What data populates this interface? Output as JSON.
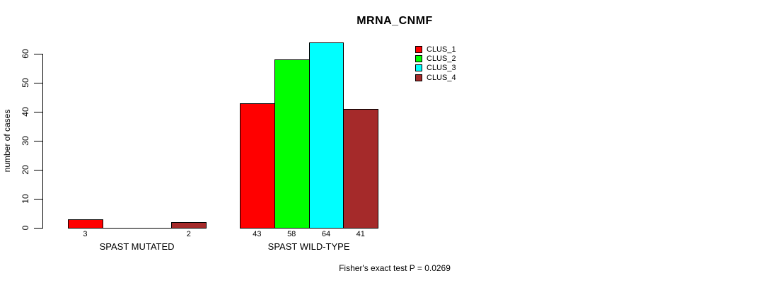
{
  "chart_data": {
    "type": "bar",
    "title": "MRNA_CNMF",
    "xlabel": "",
    "ylabel": "number of cases",
    "categories": [
      "SPAST MUTATED",
      "SPAST WILD-TYPE"
    ],
    "series": [
      {
        "name": "CLUS_1",
        "color": "#ff0000",
        "values": [
          3,
          43
        ]
      },
      {
        "name": "CLUS_2",
        "color": "#00ff00",
        "values": [
          0,
          58
        ]
      },
      {
        "name": "CLUS_3",
        "color": "#00ffff",
        "values": [
          0,
          64
        ]
      },
      {
        "name": "CLUS_4",
        "color": "#a52a2a",
        "values": [
          2,
          41
        ]
      }
    ],
    "bar_labels": [
      [
        "3",
        "",
        "",
        "2"
      ],
      [
        "43",
        "58",
        "64",
        "41"
      ]
    ],
    "yticks": [
      0,
      10,
      20,
      30,
      40,
      50,
      60
    ],
    "ylim": [
      0,
      65
    ],
    "grid": false,
    "legend_position": "top-right",
    "legend": [
      "CLUS_1",
      "CLUS_2",
      "CLUS_3",
      "CLUS_4"
    ],
    "annotation": "Fisher's exact test P = 0.0269"
  }
}
